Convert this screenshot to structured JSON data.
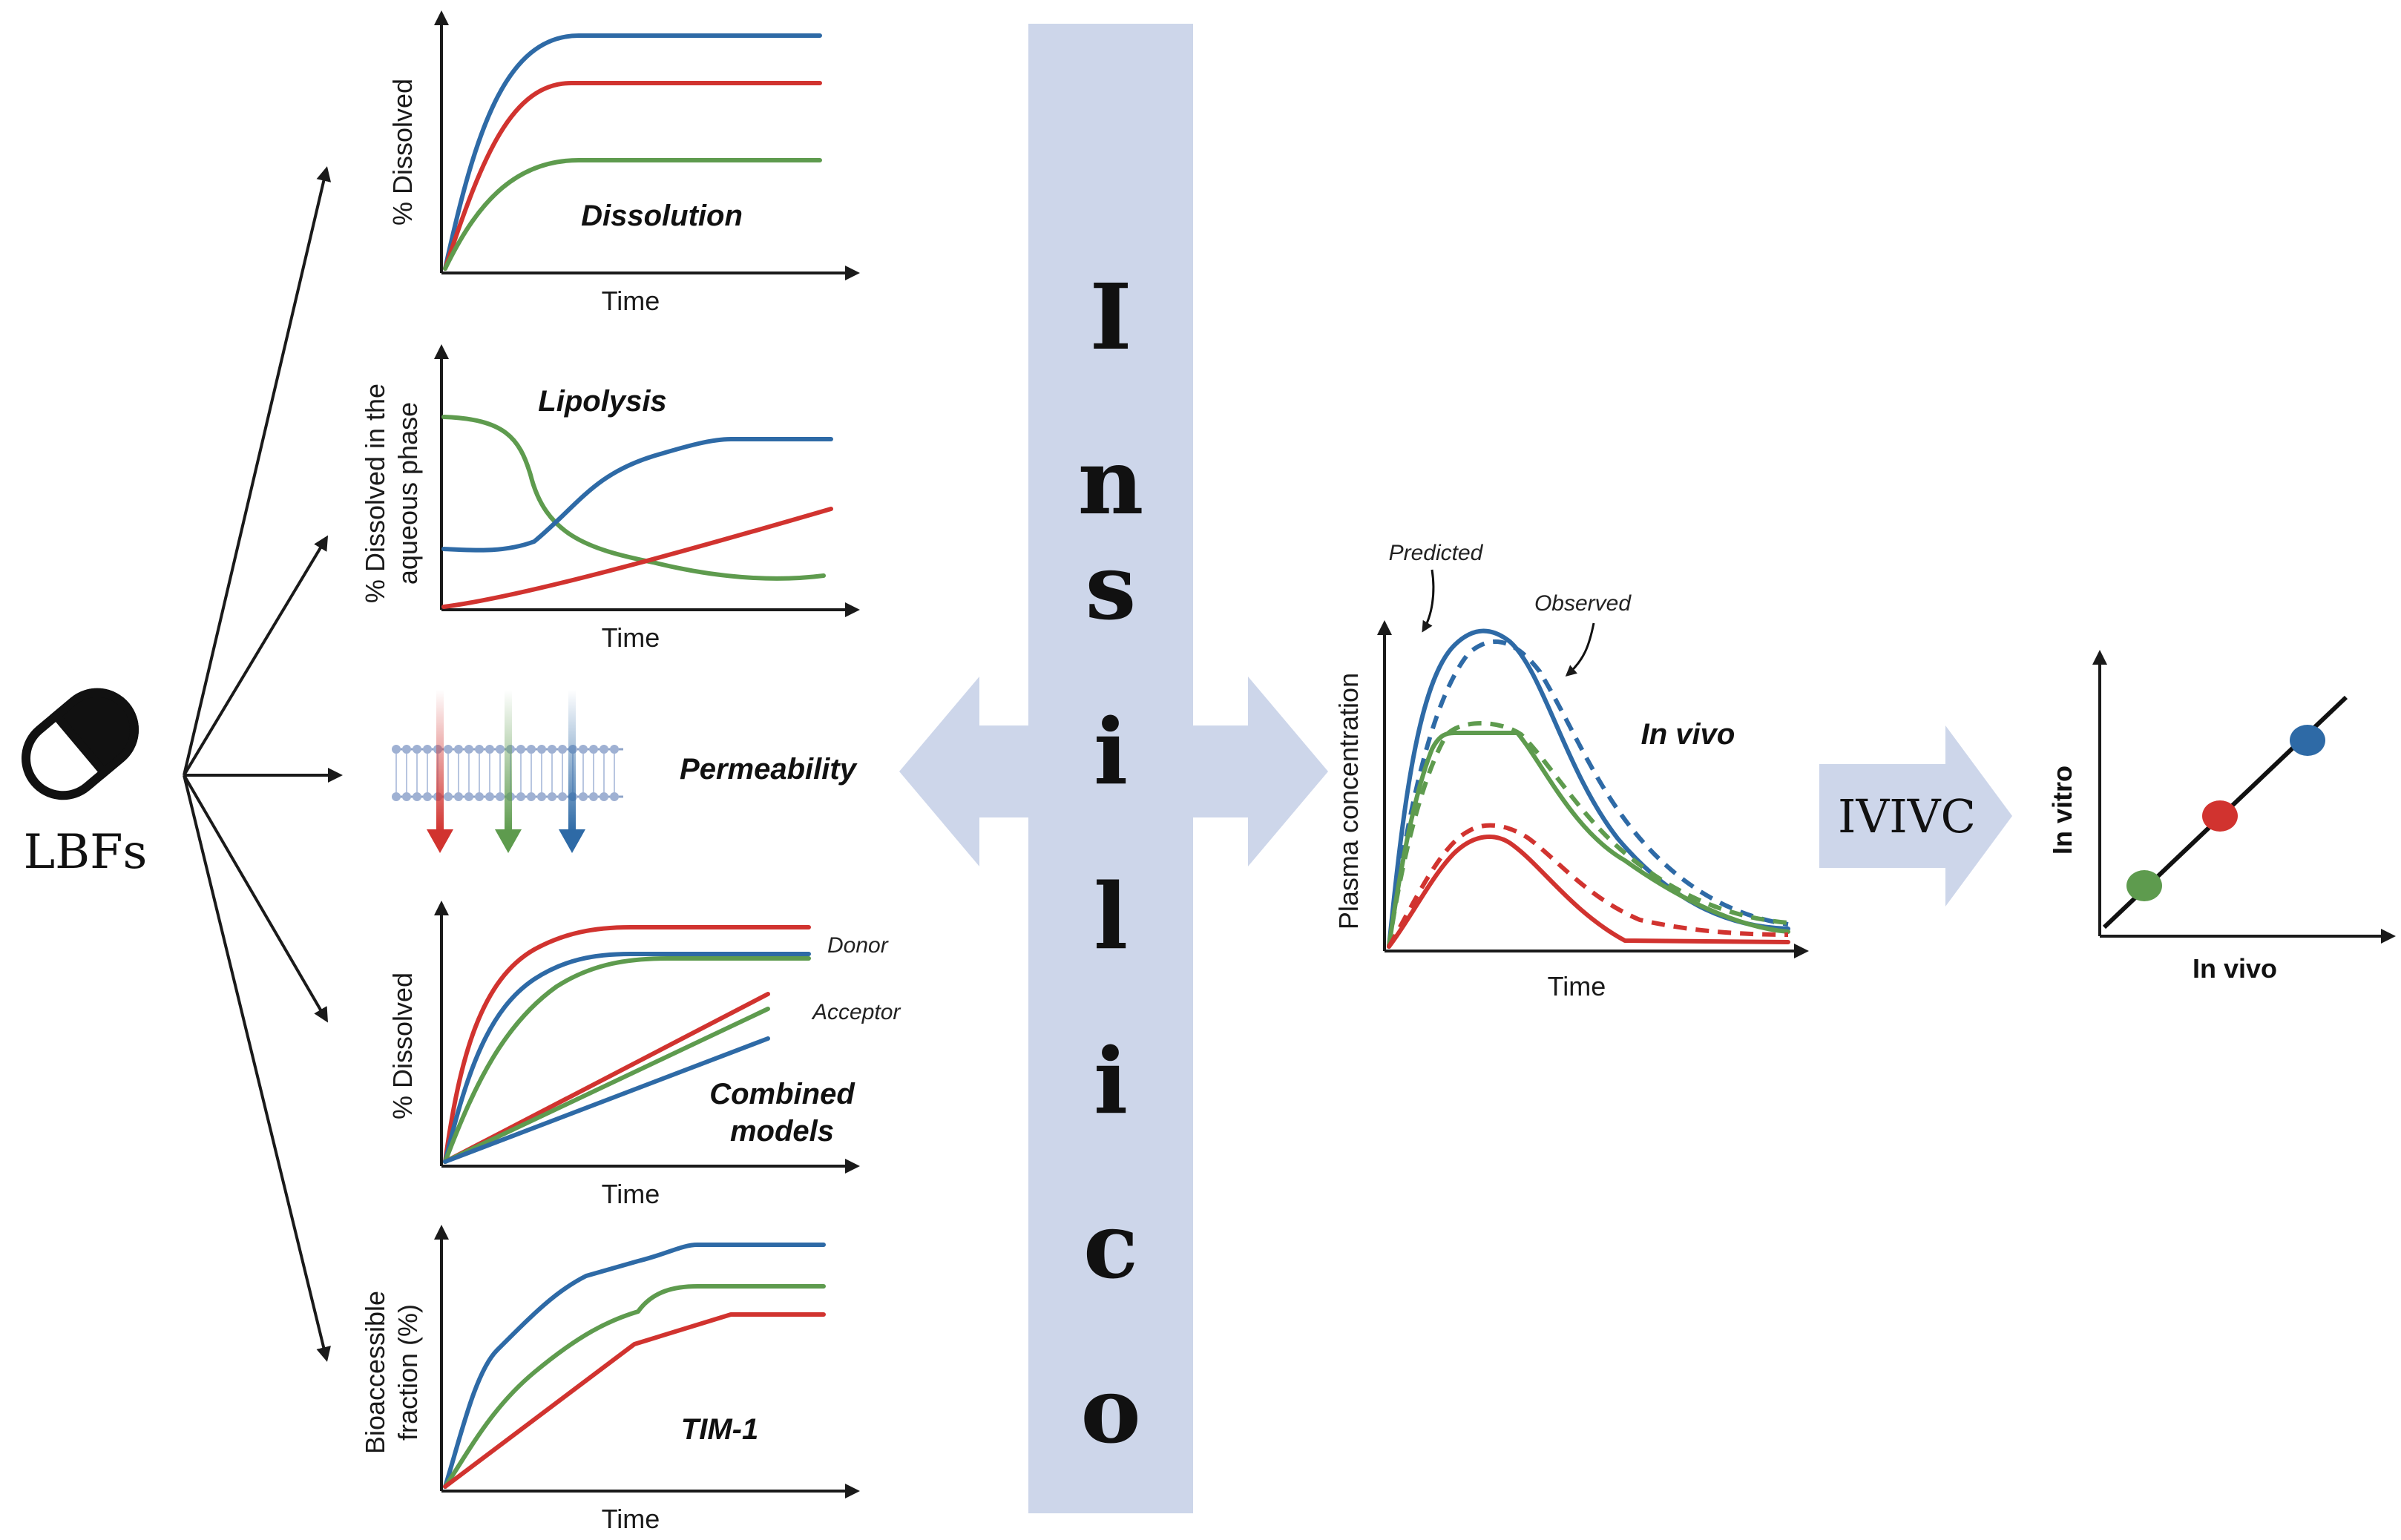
{
  "colors": {
    "blue": "#2e6aa6",
    "red": "#d1332f",
    "green": "#5e9b4e",
    "band": "#cdd6ea"
  },
  "lbf_label": "LBFs",
  "in_silico_letters": [
    "I",
    "n",
    "s",
    "i",
    "l",
    "i",
    "c",
    "o"
  ],
  "panels": {
    "dissolution": {
      "title": "Dissolution",
      "ylabel": "% Dissolved",
      "xlabel": "Time"
    },
    "lipolysis": {
      "title": "Lipolysis",
      "ylabel_line1": "% Dissolved in the",
      "ylabel_line2": "aqueous phase",
      "xlabel": "Time"
    },
    "permeability": {
      "title": "Permeability"
    },
    "combined": {
      "title_line1": "Combined",
      "title_line2": "models",
      "ylabel": "% Dissolved",
      "xlabel": "Time",
      "donor": "Donor",
      "acceptor": "Acceptor"
    },
    "tim1": {
      "title": "TIM-1",
      "ylabel_line1": "Bioaccessible",
      "ylabel_line2": "fraction (%)",
      "xlabel": "Time"
    }
  },
  "invivo": {
    "title": "In vivo",
    "ylabel": "Plasma concentration",
    "xlabel": "Time",
    "predicted": "Predicted",
    "observed": "Observed"
  },
  "ivivc": {
    "label": "IVIVC",
    "xlabel": "In vivo",
    "ylabel": "In vitro"
  }
}
